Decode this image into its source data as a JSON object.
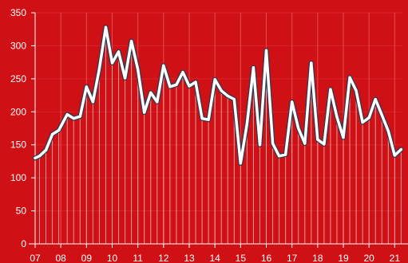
{
  "colors": {
    "background": "#cf1116",
    "line": "#ffffff",
    "outline": "#2b3a52",
    "drop": "#f2c6c8",
    "grid": "#e84a50"
  },
  "chart_data": {
    "type": "line",
    "title": "",
    "xlabel": "",
    "ylabel": "",
    "grid": true,
    "xlim": [
      2007,
      2021.3
    ],
    "ylim": [
      0,
      350
    ],
    "x_ticks": [
      2007,
      2008,
      2009,
      2010,
      2011,
      2012,
      2013,
      2014,
      2015,
      2016,
      2017,
      2018,
      2019,
      2020,
      2021
    ],
    "x_tick_labels": [
      "07",
      "08",
      "09",
      "10",
      "11",
      "12",
      "13",
      "14",
      "15",
      "16",
      "17",
      "18",
      "19",
      "20",
      "21"
    ],
    "y_ticks": [
      0,
      50,
      100,
      150,
      200,
      250,
      300,
      350
    ],
    "y_tick_labels": [
      "0",
      "50",
      "100",
      "150",
      "200",
      "250",
      "300",
      "350"
    ],
    "series": [
      {
        "x": [
          2007.0,
          2007.17,
          2007.42,
          2007.67,
          2007.92,
          2008.25,
          2008.5,
          2008.75,
          2009.0,
          2009.25,
          2009.5,
          2009.75,
          2010.0,
          2010.25,
          2010.5,
          2010.75,
          2011.0,
          2011.25,
          2011.5,
          2011.75,
          2012.0,
          2012.25,
          2012.5,
          2012.75,
          2013.0,
          2013.25,
          2013.5,
          2013.75,
          2014.0,
          2014.25,
          2014.5,
          2014.75,
          2015.0,
          2015.25,
          2015.5,
          2015.75,
          2016.0,
          2016.25,
          2016.5,
          2016.75,
          2017.0,
          2017.25,
          2017.5,
          2017.75,
          2018.0,
          2018.25,
          2018.5,
          2018.75,
          2019.0,
          2019.25,
          2019.5,
          2019.75,
          2020.0,
          2020.25,
          2020.5,
          2020.75,
          2021.0,
          2021.25
        ],
        "values": [
          130,
          133,
          142,
          166,
          172,
          196,
          190,
          193,
          238,
          215,
          265,
          328,
          274,
          291,
          251,
          307,
          264,
          199,
          229,
          215,
          270,
          238,
          241,
          260,
          239,
          245,
          190,
          188,
          249,
          232,
          224,
          219,
          122,
          182,
          267,
          150,
          293,
          152,
          133,
          135,
          215,
          175,
          152,
          274,
          158,
          151,
          234,
          192,
          161,
          252,
          232,
          184,
          191,
          219,
          195,
          171,
          134,
          143
        ]
      }
    ]
  }
}
